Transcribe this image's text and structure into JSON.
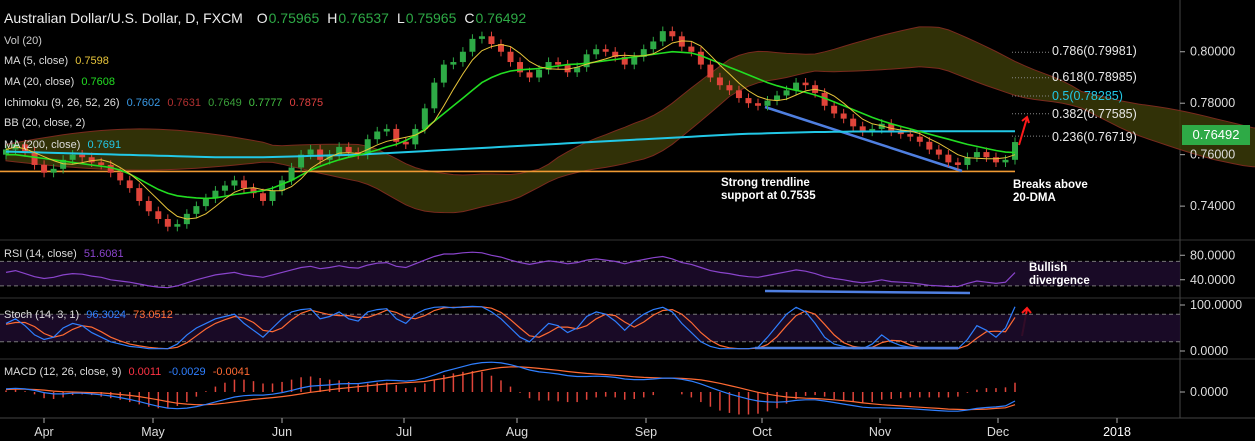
{
  "header": {
    "title": "Australian Dollar/U.S. Dollar, D, FXCM",
    "ohlc": [
      {
        "k": "O",
        "v": "0.75965"
      },
      {
        "k": "H",
        "v": "0.76537"
      },
      {
        "k": "L",
        "v": "0.75965"
      },
      {
        "k": "C",
        "v": "0.76492"
      }
    ]
  },
  "colors": {
    "up": "#2eaa46",
    "down": "#e0443a",
    "ma5": "#e6c43a",
    "ma20": "#22dd22",
    "ma200": "#22c8e6",
    "trendline": "#4f7fe0",
    "support": "#f09a33",
    "ichimoku_cloud": "#3a3a08",
    "rsi": "#8a44cc",
    "stoch_k": "#2f7fff",
    "stoch_d": "#ff6a33",
    "macd": "#2f7fff",
    "signal": "#ff6a33",
    "hist": "#e0443a"
  },
  "indicators": {
    "vol": "Vol (20)",
    "ma5": {
      "label": "MA (5, close)",
      "value": "0.7598"
    },
    "ma20": {
      "label": "MA (20, close)",
      "value": "0.7608"
    },
    "ichimoku": {
      "label": "Ichimoku (9, 26, 52, 26)",
      "values": [
        "0.7602",
        "0.7631",
        "0.7649",
        "0.7777",
        "0.7875"
      ]
    },
    "bb": {
      "label": "BB (20, close, 2)"
    },
    "ma200": {
      "label": "MA (200, close)",
      "value": "0.7691"
    },
    "rsi": {
      "label": "RSI (14, close)",
      "value": "51.6081"
    },
    "stoch": {
      "label": "Stoch (14, 3, 1)",
      "k": "96.3024",
      "d": "73.0512"
    },
    "macd": {
      "label": "MACD (12, 26, close, 9)",
      "values": [
        "0.0011",
        "-0.0029",
        "-0.0041"
      ]
    }
  },
  "annotations": {
    "support": [
      "Strong trendline",
      "support at 0.7535"
    ],
    "breaks": [
      "Breaks above",
      "20-DMA"
    ],
    "divergence": [
      "Bullish",
      "divergence"
    ]
  },
  "fib_levels": [
    {
      "label": "0.786(0.79981)",
      "price": 0.7998
    },
    {
      "label": "0.618(0.78985)",
      "price": 0.7899
    },
    {
      "label": "0.5(0.78285)",
      "price": 0.7828
    },
    {
      "label": "0.382(0.77585)",
      "price": 0.7759
    },
    {
      "label": "0.236(0.76719)",
      "price": 0.7672
    }
  ],
  "current_price": "0.76492",
  "chart_data": {
    "type": "candlestick",
    "x_ticks": [
      "Apr",
      "May",
      "Jun",
      "Jul",
      "Aug",
      "Sep",
      "Oct",
      "Nov",
      "Dec",
      "2018"
    ],
    "y_ticks": [
      "0.80000",
      "0.78000",
      "0.76000",
      "0.74000"
    ],
    "ylim": [
      0.728,
      0.817
    ],
    "rsi_ticks": [
      "80.0000",
      "40.0000"
    ],
    "stoch_ticks": [
      "100.0000",
      "0.0000"
    ],
    "macd_ticks": [
      "0.0000"
    ],
    "close": [
      0.762,
      0.764,
      0.761,
      0.756,
      0.753,
      0.7545,
      0.758,
      0.76,
      0.759,
      0.757,
      0.756,
      0.753,
      0.75,
      0.747,
      0.742,
      0.738,
      0.735,
      0.732,
      0.733,
      0.737,
      0.74,
      0.743,
      0.746,
      0.748,
      0.75,
      0.747,
      0.745,
      0.742,
      0.746,
      0.75,
      0.755,
      0.76,
      0.762,
      0.758,
      0.76,
      0.763,
      0.761,
      0.76,
      0.766,
      0.769,
      0.77,
      0.765,
      0.764,
      0.77,
      0.778,
      0.788,
      0.795,
      0.796,
      0.8,
      0.805,
      0.806,
      0.803,
      0.8,
      0.796,
      0.792,
      0.79,
      0.793,
      0.796,
      0.795,
      0.792,
      0.794,
      0.799,
      0.801,
      0.8,
      0.798,
      0.795,
      0.798,
      0.801,
      0.804,
      0.808,
      0.806,
      0.802,
      0.8,
      0.795,
      0.79,
      0.787,
      0.785,
      0.782,
      0.78,
      0.779,
      0.781,
      0.783,
      0.785,
      0.788,
      0.787,
      0.784,
      0.779,
      0.776,
      0.774,
      0.771,
      0.769,
      0.77,
      0.772,
      0.769,
      0.768,
      0.767,
      0.765,
      0.762,
      0.76,
      0.757,
      0.756,
      0.759,
      0.761,
      0.759,
      0.757,
      0.758,
      0.7649
    ],
    "ma20": [
      0.76,
      0.76,
      0.7595,
      0.759,
      0.7585,
      0.758,
      0.7575,
      0.757,
      0.7565,
      0.756,
      0.7555,
      0.755,
      0.754,
      0.7525,
      0.7505,
      0.7485,
      0.7465,
      0.745,
      0.744,
      0.7435,
      0.7432,
      0.743,
      0.7432,
      0.7438,
      0.7445,
      0.745,
      0.7455,
      0.746,
      0.747,
      0.7485,
      0.75,
      0.752,
      0.754,
      0.7555,
      0.7568,
      0.758,
      0.759,
      0.7598,
      0.7608,
      0.7618,
      0.763,
      0.764,
      0.7655,
      0.7675,
      0.77,
      0.773,
      0.776,
      0.779,
      0.782,
      0.785,
      0.788,
      0.79,
      0.7915,
      0.7925,
      0.793,
      0.7932,
      0.7935,
      0.794,
      0.7945,
      0.795,
      0.7952,
      0.7955,
      0.796,
      0.7965,
      0.797,
      0.7975,
      0.798,
      0.7985,
      0.799,
      0.7995,
      0.8,
      0.7998,
      0.7995,
      0.7985,
      0.797,
      0.7955,
      0.794,
      0.7925,
      0.791,
      0.7895,
      0.788,
      0.7868,
      0.7858,
      0.785,
      0.7842,
      0.7832,
      0.782,
      0.7805,
      0.779,
      0.7775,
      0.776,
      0.7745,
      0.7732,
      0.772,
      0.771,
      0.77,
      0.769,
      0.768,
      0.767,
      0.766,
      0.765,
      0.764,
      0.7632,
      0.7624,
      0.7616,
      0.761,
      0.7608
    ],
    "ma200": [
      0.7612,
      0.7611,
      0.761,
      0.7609,
      0.7608,
      0.7607,
      0.7606,
      0.7605,
      0.7604,
      0.7603,
      0.7602,
      0.7601,
      0.76,
      0.7599,
      0.7598,
      0.7597,
      0.7596,
      0.7595,
      0.7594,
      0.7593,
      0.7592,
      0.7591,
      0.759,
      0.759,
      0.759,
      0.759,
      0.759,
      0.759,
      0.7591,
      0.7592,
      0.7593,
      0.7594,
      0.7595,
      0.7596,
      0.7597,
      0.7598,
      0.7599,
      0.76,
      0.7602,
      0.7604,
      0.7606,
      0.7608,
      0.761,
      0.7612,
      0.7614,
      0.7616,
      0.7618,
      0.762,
      0.7622,
      0.7624,
      0.7626,
      0.7628,
      0.763,
      0.7632,
      0.7634,
      0.7636,
      0.7638,
      0.764,
      0.7642,
      0.7644,
      0.7646,
      0.7648,
      0.765,
      0.7652,
      0.7654,
      0.7656,
      0.7658,
      0.766,
      0.7662,
      0.7664,
      0.7666,
      0.7668,
      0.767,
      0.7672,
      0.7674,
      0.7676,
      0.7678,
      0.768,
      0.7681,
      0.7682,
      0.7683,
      0.7684,
      0.7685,
      0.7686,
      0.7687,
      0.7688,
      0.7688,
      0.7689,
      0.7689,
      0.769,
      0.769,
      0.769,
      0.769,
      0.769,
      0.769,
      0.7691,
      0.7691,
      0.7691,
      0.7691,
      0.7691,
      0.7691,
      0.7691,
      0.7691,
      0.7691,
      0.7691,
      0.7691,
      0.7691
    ],
    "support_level": 0.7535,
    "rsi": [
      52,
      55,
      50,
      45,
      42,
      44,
      48,
      50,
      49,
      46,
      44,
      40,
      38,
      36,
      33,
      30,
      28,
      27,
      30,
      35,
      40,
      44,
      48,
      50,
      52,
      48,
      46,
      44,
      48,
      52,
      56,
      60,
      62,
      58,
      60,
      63,
      60,
      59,
      64,
      67,
      68,
      62,
      60,
      66,
      72,
      78,
      82,
      82,
      84,
      85,
      84,
      80,
      77,
      72,
      68,
      65,
      68,
      71,
      69,
      66,
      68,
      72,
      74,
      72,
      70,
      66,
      70,
      73,
      76,
      78,
      74,
      68,
      65,
      60,
      55,
      52,
      50,
      47,
      45,
      44,
      47,
      50,
      53,
      56,
      54,
      50,
      45,
      42,
      40,
      37,
      35,
      37,
      40,
      37,
      36,
      35,
      33,
      31,
      30,
      29,
      29,
      34,
      38,
      36,
      34,
      36,
      51.6
    ],
    "stoch_k": [
      60,
      70,
      55,
      35,
      25,
      30,
      50,
      60,
      55,
      40,
      30,
      20,
      15,
      10,
      8,
      5,
      5,
      5,
      15,
      35,
      50,
      60,
      70,
      75,
      80,
      60,
      45,
      30,
      50,
      70,
      85,
      90,
      92,
      70,
      75,
      85,
      70,
      65,
      85,
      90,
      92,
      70,
      60,
      80,
      90,
      95,
      96,
      94,
      96,
      97,
      96,
      85,
      70,
      50,
      30,
      20,
      40,
      60,
      55,
      40,
      50,
      75,
      85,
      80,
      65,
      45,
      65,
      80,
      90,
      95,
      85,
      60,
      40,
      20,
      10,
      5,
      5,
      5,
      5,
      8,
      30,
      55,
      80,
      95,
      85,
      60,
      30,
      15,
      10,
      5,
      5,
      15,
      35,
      20,
      12,
      8,
      5,
      5,
      5,
      5,
      5,
      25,
      55,
      45,
      30,
      50,
      96.3
    ],
    "stoch_d": [
      58,
      62,
      62,
      53,
      38,
      30,
      35,
      47,
      55,
      52,
      42,
      30,
      22,
      15,
      11,
      8,
      6,
      5,
      8,
      18,
      33,
      48,
      60,
      68,
      75,
      72,
      62,
      45,
      42,
      50,
      68,
      82,
      89,
      84,
      79,
      77,
      77,
      73,
      73,
      80,
      89,
      84,
      74,
      70,
      77,
      88,
      94,
      95,
      95,
      96,
      96,
      93,
      84,
      68,
      50,
      33,
      30,
      40,
      52,
      52,
      48,
      55,
      70,
      80,
      77,
      63,
      52,
      63,
      78,
      88,
      90,
      80,
      62,
      40,
      23,
      12,
      7,
      5,
      5,
      6,
      14,
      31,
      55,
      77,
      87,
      80,
      58,
      35,
      18,
      10,
      7,
      8,
      18,
      23,
      22,
      13,
      8,
      6,
      5,
      5,
      5,
      12,
      28,
      42,
      43,
      42,
      73.1
    ],
    "macd": [
      0.001,
      0.0012,
      0.001,
      0.0005,
      -0.0002,
      -0.0006,
      -0.0006,
      -0.0004,
      -0.0004,
      -0.0006,
      -0.0009,
      -0.0013,
      -0.0018,
      -0.0024,
      -0.0031,
      -0.0039,
      -0.0046,
      -0.0052,
      -0.0054,
      -0.0052,
      -0.0047,
      -0.004,
      -0.0032,
      -0.0024,
      -0.0016,
      -0.0012,
      -0.001,
      -0.001,
      -0.0007,
      -0.0002,
      0.0005,
      0.0013,
      0.0019,
      0.0021,
      0.0023,
      0.0026,
      0.0027,
      0.0027,
      0.0031,
      0.0035,
      0.0038,
      0.0037,
      0.0035,
      0.0038,
      0.0045,
      0.0055,
      0.0066,
      0.0074,
      0.0082,
      0.009,
      0.0095,
      0.0096,
      0.0094,
      0.0088,
      0.008,
      0.0071,
      0.0065,
      0.0062,
      0.0058,
      0.0053,
      0.005,
      0.005,
      0.0051,
      0.005,
      0.0047,
      0.0042,
      0.004,
      0.004,
      0.0042,
      0.0045,
      0.0045,
      0.0041,
      0.0035,
      0.0026,
      0.0015,
      0.0004,
      -0.0006,
      -0.0015,
      -0.0023,
      -0.0029,
      -0.0032,
      -0.0033,
      -0.0031,
      -0.0027,
      -0.0025,
      -0.0025,
      -0.0029,
      -0.0034,
      -0.0039,
      -0.0044,
      -0.0049,
      -0.0051,
      -0.0051,
      -0.0052,
      -0.0053,
      -0.0054,
      -0.0056,
      -0.0058,
      -0.006,
      -0.0062,
      -0.0062,
      -0.0058,
      -0.0053,
      -0.005,
      -0.0048,
      -0.0045,
      -0.0029
    ],
    "signal": [
      0.0008,
      0.0009,
      0.0009,
      0.0008,
      0.0006,
      0.0003,
      0.0001,
      0.0,
      -0.0001,
      -0.0002,
      -0.0003,
      -0.0005,
      -0.0008,
      -0.0011,
      -0.0015,
      -0.002,
      -0.0025,
      -0.0031,
      -0.0036,
      -0.0039,
      -0.0041,
      -0.0041,
      -0.0039,
      -0.0036,
      -0.0032,
      -0.0028,
      -0.0024,
      -0.0021,
      -0.0018,
      -0.0015,
      -0.0011,
      -0.0006,
      -0.0001,
      0.0003,
      0.0007,
      0.0011,
      0.0014,
      0.0017,
      0.002,
      0.0023,
      0.0026,
      0.0028,
      0.003,
      0.0032,
      0.0034,
      0.0039,
      0.0044,
      0.005,
      0.0056,
      0.0063,
      0.0069,
      0.0075,
      0.0079,
      0.0081,
      0.0081,
      0.0079,
      0.0076,
      0.0073,
      0.007,
      0.0066,
      0.0063,
      0.006,
      0.0058,
      0.0056,
      0.0054,
      0.0052,
      0.0049,
      0.0047,
      0.0046,
      0.0045,
      0.0045,
      0.0044,
      0.0042,
      0.0039,
      0.0034,
      0.0028,
      0.0021,
      0.0014,
      0.0006,
      -0.0001,
      -0.0007,
      -0.0012,
      -0.0016,
      -0.0018,
      -0.002,
      -0.0021,
      -0.0023,
      -0.0025,
      -0.0028,
      -0.0031,
      -0.0035,
      -0.0038,
      -0.0041,
      -0.0043,
      -0.0045,
      -0.0047,
      -0.0049,
      -0.0051,
      -0.0053,
      -0.0055,
      -0.0056,
      -0.0057,
      -0.0056,
      -0.0055,
      -0.0053,
      -0.0051,
      -0.0041
    ]
  }
}
